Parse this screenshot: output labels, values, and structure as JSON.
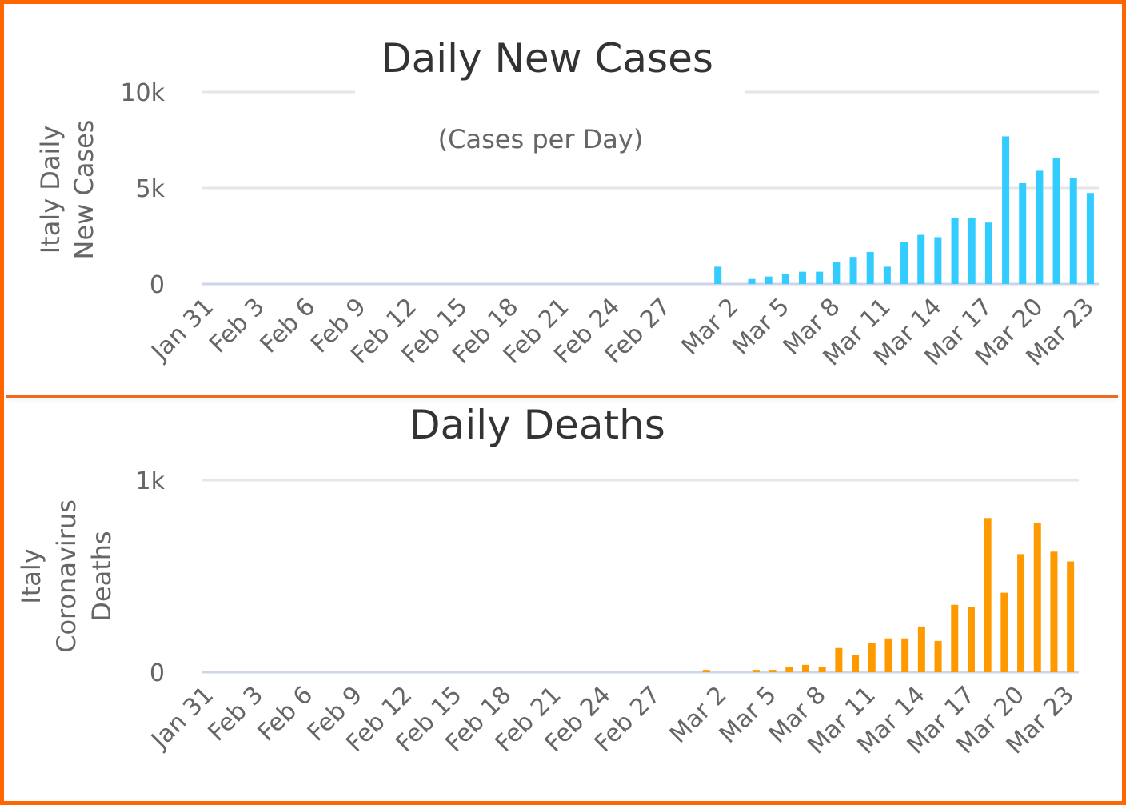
{
  "chart_data": [
    {
      "type": "bar",
      "title": "Daily New Cases",
      "subtitle": "(Cases per Day)",
      "ylabel_lines": [
        "Italy Daily",
        "New Cases"
      ],
      "xlabel": "",
      "color": "#33ccff",
      "ylim": [
        0,
        10000
      ],
      "yticks": [
        {
          "value": 0,
          "label": "0"
        },
        {
          "value": 5000,
          "label": "5k"
        },
        {
          "value": 10000,
          "label": "10k"
        }
      ],
      "grid": true,
      "x_start": "Jan 31",
      "x_end": "Mar 23",
      "xtick_labels": [
        "Jan 31",
        "Feb 3",
        "Feb 6",
        "Feb 9",
        "Feb 12",
        "Feb 15",
        "Feb 18",
        "Feb 21",
        "Feb 24",
        "Feb 27",
        "Mar 2",
        "Mar 5",
        "Mar 8",
        "Mar 11",
        "Mar 14",
        "Mar 17",
        "Mar 20",
        "Mar 23"
      ],
      "points": [
        {
          "date": "Mar 1",
          "value": 900
        },
        {
          "date": "Mar 3",
          "value": 260
        },
        {
          "date": "Mar 4",
          "value": 390
        },
        {
          "date": "Mar 5",
          "value": 510
        },
        {
          "date": "Mar 6",
          "value": 640
        },
        {
          "date": "Mar 7",
          "value": 640
        },
        {
          "date": "Mar 8",
          "value": 1150
        },
        {
          "date": "Mar 9",
          "value": 1410
        },
        {
          "date": "Mar 10",
          "value": 1670
        },
        {
          "date": "Mar 11",
          "value": 900
        },
        {
          "date": "Mar 12",
          "value": 2180
        },
        {
          "date": "Mar 13",
          "value": 2560
        },
        {
          "date": "Mar 14",
          "value": 2440
        },
        {
          "date": "Mar 15",
          "value": 3460
        },
        {
          "date": "Mar 16",
          "value": 3460
        },
        {
          "date": "Mar 17",
          "value": 3200
        },
        {
          "date": "Mar 18",
          "value": 7690
        },
        {
          "date": "Mar 19",
          "value": 5250
        },
        {
          "date": "Mar 20",
          "value": 5900
        },
        {
          "date": "Mar 21",
          "value": 6540
        },
        {
          "date": "Mar 22",
          "value": 5510
        },
        {
          "date": "Mar 23",
          "value": 4740
        }
      ]
    },
    {
      "type": "bar",
      "title": "Daily Deaths",
      "subtitle": "",
      "ylabel_lines": [
        "Italy",
        "Coronavirus",
        "Deaths"
      ],
      "xlabel": "",
      "color": "#ff9900",
      "ylim": [
        0,
        1000
      ],
      "yticks": [
        {
          "value": 0,
          "label": "0"
        },
        {
          "value": 1000,
          "label": "1k"
        }
      ],
      "grid": true,
      "x_start": "Jan 31",
      "x_end": "Mar 23",
      "xtick_labels": [
        "Jan 31",
        "Feb 3",
        "Feb 6",
        "Feb 9",
        "Feb 12",
        "Feb 15",
        "Feb 18",
        "Feb 21",
        "Feb 24",
        "Feb 27",
        "Mar 2",
        "Mar 5",
        "Mar 8",
        "Mar 11",
        "Mar 14",
        "Mar 17",
        "Mar 20",
        "Mar 23"
      ],
      "points": [
        {
          "date": "Mar 1",
          "value": 12
        },
        {
          "date": "Mar 4",
          "value": 12
        },
        {
          "date": "Mar 5",
          "value": 12
        },
        {
          "date": "Mar 6",
          "value": 25
        },
        {
          "date": "Mar 7",
          "value": 38
        },
        {
          "date": "Mar 8",
          "value": 25
        },
        {
          "date": "Mar 9",
          "value": 126
        },
        {
          "date": "Mar 10",
          "value": 88
        },
        {
          "date": "Mar 11",
          "value": 151
        },
        {
          "date": "Mar 12",
          "value": 176
        },
        {
          "date": "Mar 13",
          "value": 176
        },
        {
          "date": "Mar 14",
          "value": 238
        },
        {
          "date": "Mar 15",
          "value": 163
        },
        {
          "date": "Mar 16",
          "value": 351
        },
        {
          "date": "Mar 17",
          "value": 339
        },
        {
          "date": "Mar 18",
          "value": 803
        },
        {
          "date": "Mar 19",
          "value": 414
        },
        {
          "date": "Mar 20",
          "value": 615
        },
        {
          "date": "Mar 21",
          "value": 778
        },
        {
          "date": "Mar 22",
          "value": 628
        },
        {
          "date": "Mar 23",
          "value": 577
        }
      ]
    }
  ],
  "frame_color": "#ff6600",
  "divider_color": "#ef6c1e"
}
